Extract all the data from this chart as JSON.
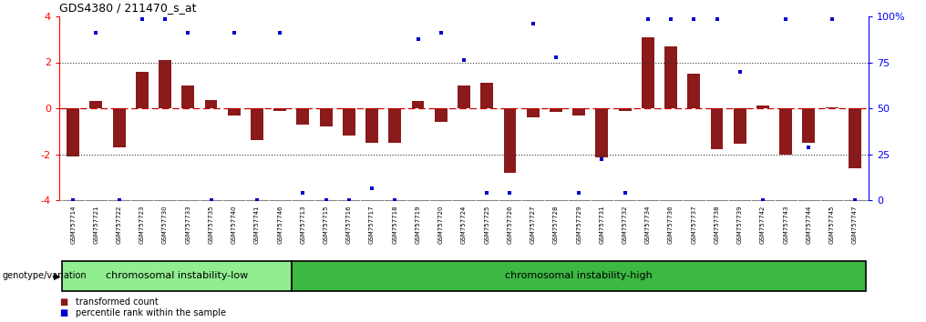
{
  "title": "GDS4380 / 211470_s_at",
  "samples": [
    "GSM757714",
    "GSM757721",
    "GSM757722",
    "GSM757723",
    "GSM757730",
    "GSM757733",
    "GSM757735",
    "GSM757740",
    "GSM757741",
    "GSM757746",
    "GSM757713",
    "GSM757715",
    "GSM757716",
    "GSM757717",
    "GSM757718",
    "GSM757719",
    "GSM757720",
    "GSM757724",
    "GSM757725",
    "GSM757726",
    "GSM757727",
    "GSM757728",
    "GSM757729",
    "GSM757731",
    "GSM757732",
    "GSM757734",
    "GSM757736",
    "GSM757737",
    "GSM757738",
    "GSM757739",
    "GSM757742",
    "GSM757743",
    "GSM757744",
    "GSM757745",
    "GSM757747"
  ],
  "bar_values": [
    -2.1,
    0.3,
    -1.7,
    1.6,
    2.1,
    1.0,
    0.35,
    -0.3,
    -1.4,
    -0.1,
    -0.7,
    -0.8,
    -1.2,
    -1.5,
    -1.5,
    0.3,
    -0.6,
    1.0,
    1.1,
    -2.8,
    -0.4,
    -0.15,
    -0.3,
    -2.15,
    -0.1,
    3.1,
    2.7,
    1.5,
    -1.8,
    -1.55,
    0.1,
    -2.0,
    -1.5,
    0.05,
    -2.6
  ],
  "percentile_y": [
    -4.0,
    3.3,
    -4.0,
    3.9,
    3.9,
    3.3,
    -4.0,
    3.3,
    -4.0,
    3.3,
    -3.7,
    -4.0,
    -4.0,
    -3.5,
    -4.0,
    3.0,
    3.3,
    2.1,
    -3.7,
    -3.7,
    3.7,
    2.2,
    -3.7,
    -2.2,
    -3.7,
    3.9,
    3.9,
    3.9,
    3.9,
    1.6,
    -4.0,
    3.9,
    -1.7,
    3.9,
    -4.0
  ],
  "group1_label": "chromosomal instability-low",
  "group2_label": "chromosomal instability-high",
  "group1_count": 10,
  "group2_count": 25,
  "genotype_label": "genotype/variation",
  "bar_color": "#8B1A1A",
  "percentile_color": "#0000CD",
  "zero_line_color": "#CC0000",
  "dotted_line_color": "#333333",
  "group1_color": "#90EE90",
  "group2_color": "#3CB843",
  "ylim": [
    -4.0,
    4.0
  ],
  "yticks_left": [
    -4,
    -2,
    0,
    2,
    4
  ],
  "right_ytick_pcts": [
    0,
    25,
    50,
    75,
    100
  ],
  "right_ytick_labels": [
    "0",
    "25",
    "50",
    "75",
    "100%"
  ],
  "legend_bar_label": "transformed count",
  "legend_pct_label": "percentile rank within the sample",
  "background_color": "#FFFFFF",
  "xticklabel_bg": "#C8C8C8"
}
